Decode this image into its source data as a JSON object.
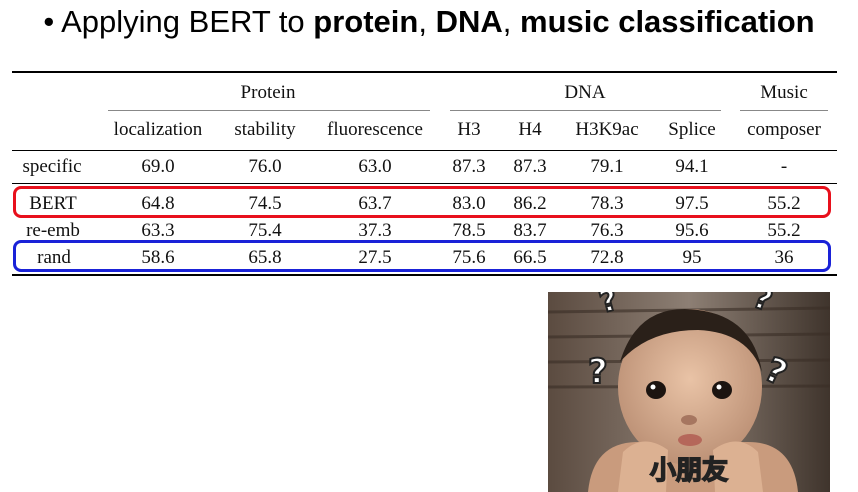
{
  "title": {
    "bullet": "•",
    "pre": "Applying BERT to ",
    "w1": "protein",
    "sep1": ", ",
    "w2": "DNA",
    "sep2": ", ",
    "w3": "music classification"
  },
  "table": {
    "groups": [
      "Protein",
      "DNA",
      "Music"
    ],
    "columns": [
      "localization",
      "stability",
      "fluorescence",
      "H3",
      "H4",
      "H3K9ac",
      "Splice",
      "composer"
    ],
    "rows": [
      {
        "label": "specific",
        "values": [
          "69.0",
          "76.0",
          "63.0",
          "87.3",
          "87.3",
          "79.1",
          "94.1",
          "-"
        ]
      },
      {
        "label": "BERT",
        "values": [
          "64.8",
          "74.5",
          "63.7",
          "83.0",
          "86.2",
          "78.3",
          "97.5",
          "55.2"
        ]
      },
      {
        "label": "re-emb",
        "values": [
          "63.3",
          "75.4",
          "37.3",
          "78.5",
          "83.7",
          "76.3",
          "95.6",
          "55.2"
        ]
      },
      {
        "label": "rand",
        "values": [
          "58.6",
          "65.8",
          "27.5",
          "75.6",
          "66.5",
          "72.8",
          "95",
          "36"
        ]
      }
    ]
  },
  "highlights": {
    "bert_color": "#e8101c",
    "rand_color": "#1a22d8"
  },
  "photo": {
    "caption": "小朋友",
    "marks": [
      "?",
      "?",
      "?",
      "?"
    ]
  }
}
